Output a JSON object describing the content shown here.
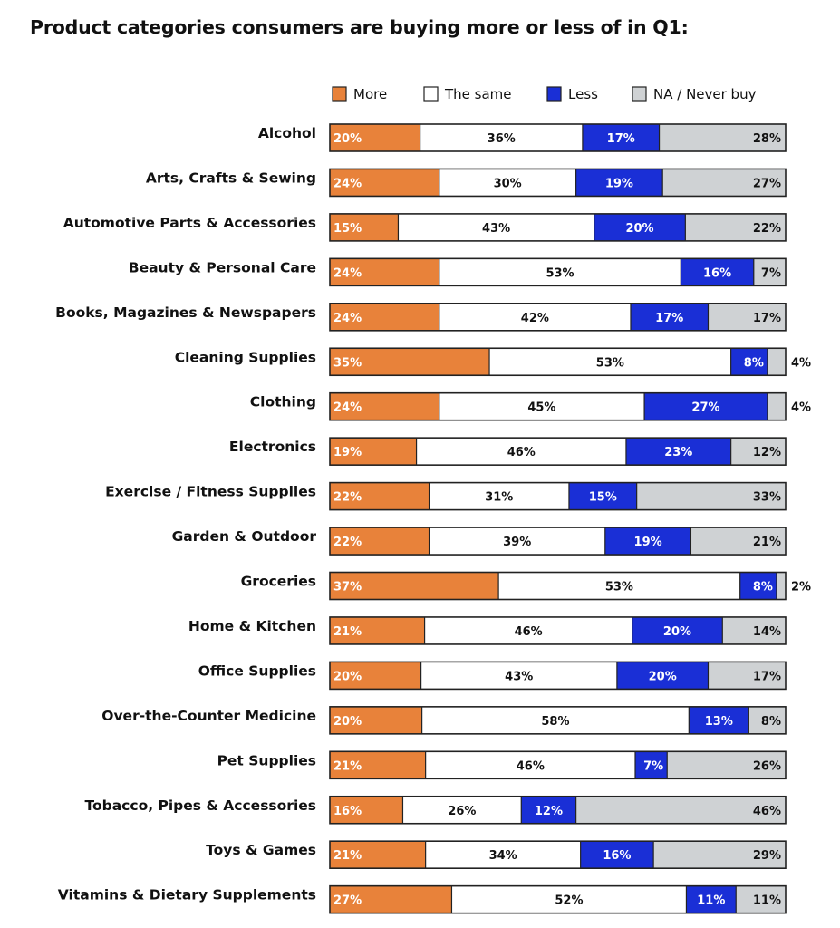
{
  "chart_data": {
    "type": "bar",
    "orientation": "horizontal",
    "stacked": true,
    "title": "Product categories consumers are buying more or less of in Q1:",
    "xlabel": "",
    "ylabel": "",
    "xlim": [
      0,
      100
    ],
    "grid": false,
    "legend_position": "top",
    "value_suffix": "%",
    "categories": [
      "Alcohol",
      "Arts, Crafts & Sewing",
      "Automotive Parts & Accessories",
      "Beauty & Personal Care",
      "Books, Magazines & Newspapers",
      "Cleaning Supplies",
      "Clothing",
      "Electronics",
      "Exercise / Fitness Supplies",
      "Garden & Outdoor",
      "Groceries",
      "Home & Kitchen",
      "Office Supplies",
      "Over-the-Counter Medicine",
      "Pet Supplies",
      "Tobacco, Pipes & Accessories",
      "Toys & Games",
      "Vitamins & Dietary Supplements"
    ],
    "series": [
      {
        "name": "More",
        "color": "#e8823a",
        "label_color": "#ffffff",
        "values": [
          20,
          24,
          15,
          24,
          24,
          35,
          24,
          19,
          22,
          22,
          37,
          21,
          20,
          20,
          21,
          16,
          21,
          27
        ]
      },
      {
        "name": "The same",
        "color": "#ffffff",
        "label_color": "#111111",
        "values": [
          36,
          30,
          43,
          53,
          42,
          53,
          45,
          46,
          31,
          39,
          53,
          46,
          43,
          58,
          46,
          26,
          34,
          52
        ]
      },
      {
        "name": "Less",
        "color": "#1a2fd6",
        "label_color": "#ffffff",
        "values": [
          17,
          19,
          20,
          16,
          17,
          8,
          27,
          23,
          15,
          19,
          8,
          20,
          20,
          13,
          7,
          12,
          16,
          11
        ]
      },
      {
        "name": "NA / Never buy",
        "color": "#cfd2d4",
        "label_color": "#111111",
        "values": [
          28,
          27,
          22,
          7,
          17,
          4,
          4,
          12,
          33,
          21,
          2,
          14,
          17,
          8,
          26,
          46,
          29,
          11
        ]
      }
    ]
  }
}
